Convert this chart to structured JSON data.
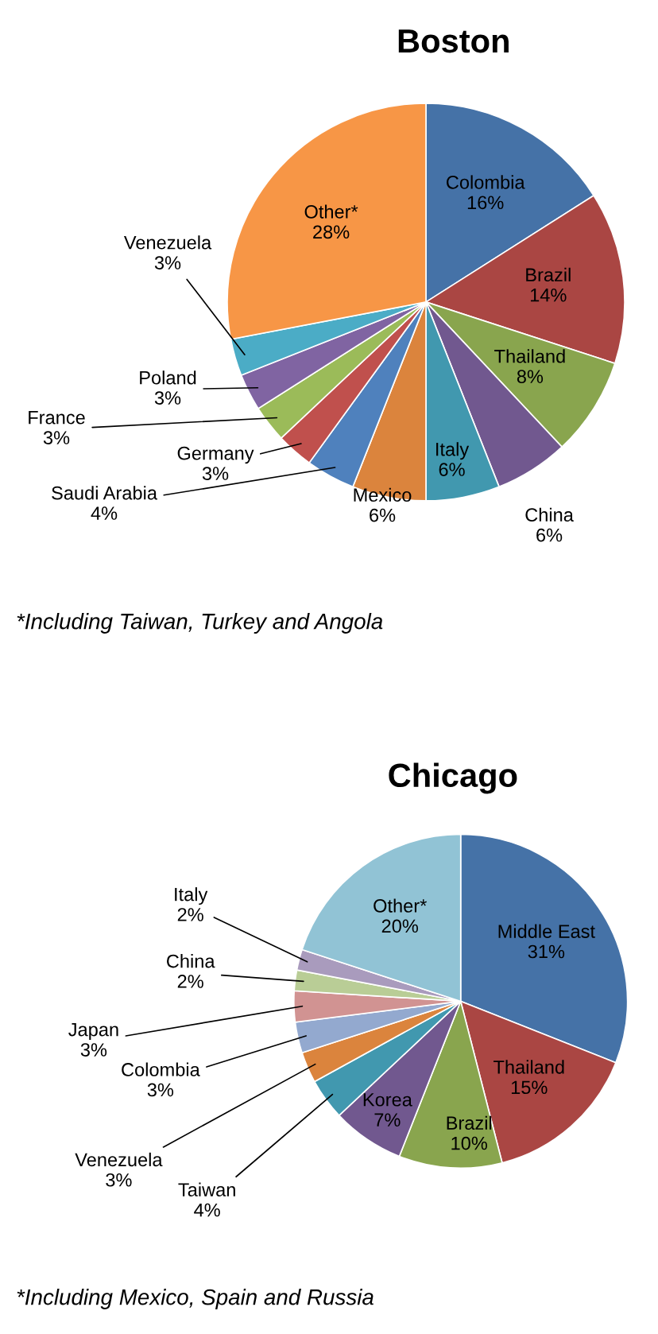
{
  "chart_data": [
    {
      "type": "pie",
      "title": "Boston",
      "categories": [
        "Colombia",
        "Brazil",
        "Thailand",
        "China",
        "Italy",
        "Mexico",
        "Saudi Arabia",
        "Germany",
        "France",
        "Poland",
        "Venezuela",
        "Other*"
      ],
      "values": [
        16,
        14,
        8,
        6,
        6,
        6,
        4,
        3,
        3,
        3,
        3,
        28
      ],
      "value_labels": [
        "16%",
        "14%",
        "8%",
        "6%",
        "6%",
        "6%",
        "4%",
        "3%",
        "3%",
        "3%",
        "3%",
        "28%"
      ],
      "colors": [
        "#4572a7",
        "#aa4643",
        "#89a54e",
        "#71588f",
        "#4198af",
        "#db843d",
        "#4f81bd",
        "#c0504d",
        "#9bbb59",
        "#8064a2",
        "#4bacc6",
        "#f79646"
      ],
      "annotations": [
        "*Including Taiwan, Turkey and Angola"
      ]
    },
    {
      "type": "pie",
      "title": "Chicago",
      "categories": [
        "Middle East",
        "Thailand",
        "Brazil",
        "Korea",
        "Taiwan",
        "Venezuela",
        "Colombia",
        "Japan",
        "China",
        "Italy",
        "Other*"
      ],
      "values": [
        31,
        15,
        10,
        7,
        4,
        3,
        3,
        3,
        2,
        2,
        20
      ],
      "value_labels": [
        "31%",
        "15%",
        "10%",
        "7%",
        "4%",
        "3%",
        "3%",
        "3%",
        "2%",
        "2%",
        "20%"
      ],
      "colors": [
        "#4572a7",
        "#aa4643",
        "#89a54e",
        "#71588f",
        "#4198af",
        "#db843d",
        "#93a9cf",
        "#d19392",
        "#b9cd96",
        "#a99bbd",
        "#91c3d5"
      ],
      "annotations": [
        "*Including Mexico, Spain and Russia"
      ]
    }
  ]
}
